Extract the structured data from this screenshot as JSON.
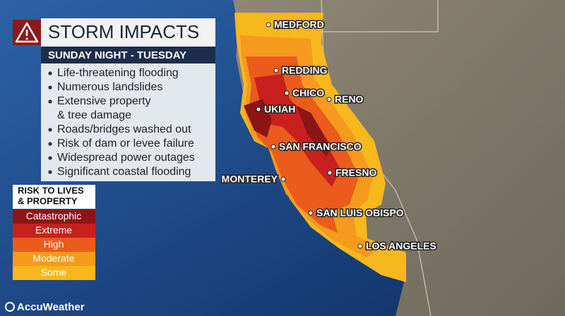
{
  "header": {
    "title": "STORM IMPACTS",
    "subtitle": "SUNDAY NIGHT - TUESDAY"
  },
  "impacts": [
    "Life-threatening flooding",
    "Numerous landslides",
    "Extensive property",
    "& tree damage",
    "Roads/bridges washed out",
    "Risk of dam or levee failure",
    "Widespread power outages",
    "Significant coastal flooding"
  ],
  "legend": {
    "title_lines": [
      "RISK TO LIVES",
      "& PROPERTY"
    ],
    "levels": [
      {
        "label": "Catastrophic",
        "color": "#8c1515"
      },
      {
        "label": "Extreme",
        "color": "#c8201f"
      },
      {
        "label": "High",
        "color": "#ea5b1c"
      },
      {
        "label": "Moderate",
        "color": "#f59a1c"
      },
      {
        "label": "Some",
        "color": "#f7b81e"
      }
    ]
  },
  "cities": [
    "MEDFORD",
    "REDDING",
    "CHICO",
    "RENO",
    "UKIAH",
    "SAN FRANCISCO",
    "FRESNO",
    "MONTEREY",
    "SAN LUIS OBISPO",
    "LOS ANGELES"
  ],
  "brand": "AccuWeather"
}
